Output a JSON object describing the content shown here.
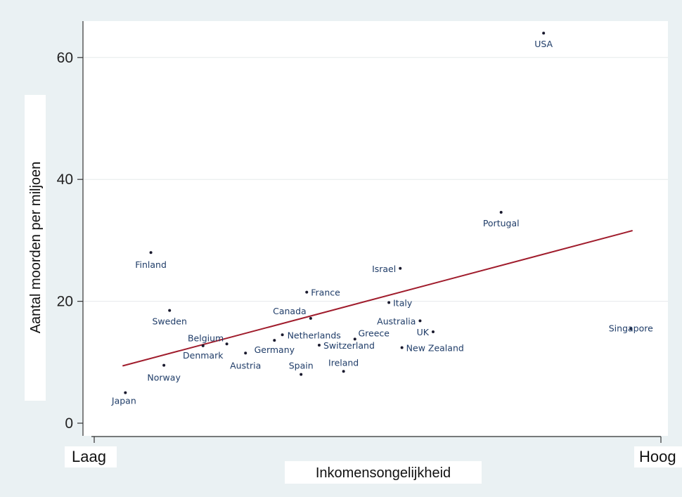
{
  "chart_data": {
    "type": "scatter",
    "title": "",
    "xlabel": "Inkomensongelijkheid",
    "ylabel": "Aantal moorden per miljoen",
    "x_extremes": {
      "low": "Laag",
      "high": "Hoog"
    },
    "xlim": [
      0,
      10
    ],
    "ylim": [
      0,
      65
    ],
    "yticks": [
      0,
      20,
      40,
      60
    ],
    "grid": true,
    "colors": {
      "points": "#1a1a2e",
      "labels": "#1f3c68",
      "trend": "#a01c2c",
      "plot_bg": "#ffffff",
      "outer_bg": "#eaf1f3"
    },
    "points": [
      {
        "name": "Japan",
        "x": 0.55,
        "y": 5
      },
      {
        "name": "Finland",
        "x": 1.0,
        "y": 28
      },
      {
        "name": "Norway",
        "x": 1.23,
        "y": 9.5
      },
      {
        "name": "Sweden",
        "x": 1.33,
        "y": 18.5
      },
      {
        "name": "Denmark",
        "x": 1.92,
        "y": 12.7
      },
      {
        "name": "Belgium",
        "x": 2.34,
        "y": 13
      },
      {
        "name": "Austria",
        "x": 2.67,
        "y": 11.5
      },
      {
        "name": "Germany",
        "x": 3.18,
        "y": 13.6
      },
      {
        "name": "Netherlands",
        "x": 3.32,
        "y": 14.5
      },
      {
        "name": "France",
        "x": 3.75,
        "y": 21.5
      },
      {
        "name": "Canada",
        "x": 3.82,
        "y": 17.2
      },
      {
        "name": "Spain",
        "x": 3.65,
        "y": 8
      },
      {
        "name": "Switzerland",
        "x": 3.97,
        "y": 12.8
      },
      {
        "name": "Ireland",
        "x": 4.4,
        "y": 8.5
      },
      {
        "name": "Greece",
        "x": 4.6,
        "y": 13.8
      },
      {
        "name": "Italy",
        "x": 5.2,
        "y": 19.8
      },
      {
        "name": "Israel",
        "x": 5.4,
        "y": 25.4
      },
      {
        "name": "New Zealand",
        "x": 5.43,
        "y": 12.4
      },
      {
        "name": "Australia",
        "x": 5.75,
        "y": 16.8
      },
      {
        "name": "UK",
        "x": 5.98,
        "y": 15
      },
      {
        "name": "Portugal",
        "x": 7.18,
        "y": 34.6
      },
      {
        "name": "USA",
        "x": 7.93,
        "y": 64
      },
      {
        "name": "Singapore",
        "x": 9.47,
        "y": 15.5
      }
    ],
    "trendline": {
      "x": [
        0.5,
        9.5
      ],
      "y": [
        9.4,
        31.6
      ]
    }
  }
}
